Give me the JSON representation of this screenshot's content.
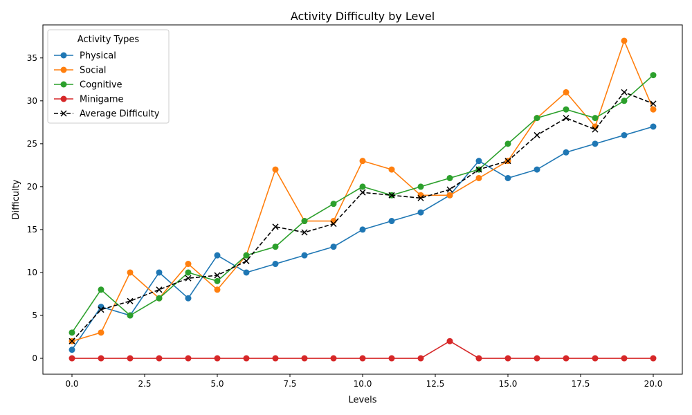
{
  "chart_data": {
    "type": "line",
    "title": "Activity Difficulty by Level",
    "xlabel": "Levels",
    "ylabel": "Difficulty",
    "xlim": [
      -1,
      21
    ],
    "ylim": [
      -1.85,
      38.85
    ],
    "x_ticks": [
      0,
      2.5,
      5,
      7.5,
      10,
      12.5,
      15,
      17.5,
      20
    ],
    "x_tick_labels": [
      "0.0",
      "2.5",
      "5.0",
      "7.5",
      "10.0",
      "12.5",
      "15.0",
      "17.5",
      "20.0"
    ],
    "y_ticks": [
      0,
      5,
      10,
      15,
      20,
      25,
      30,
      35
    ],
    "y_tick_labels": [
      "0",
      "5",
      "10",
      "15",
      "20",
      "25",
      "30",
      "35"
    ],
    "grid": false,
    "legend": {
      "title": "Activity Types",
      "placement": "top-left"
    },
    "x": [
      0,
      1,
      2,
      3,
      4,
      5,
      6,
      7,
      8,
      9,
      10,
      11,
      12,
      13,
      14,
      15,
      16,
      17,
      18,
      19,
      20
    ],
    "series": [
      {
        "name": "Physical",
        "color": "#1f77b4",
        "marker": "circle",
        "dash": "solid",
        "values": [
          1,
          6,
          5,
          10,
          7,
          12,
          10,
          11,
          12,
          13,
          15,
          16,
          17,
          19,
          23,
          21,
          22,
          24,
          25,
          26,
          27
        ]
      },
      {
        "name": "Social",
        "color": "#ff7f0e",
        "marker": "circle",
        "dash": "solid",
        "values": [
          2,
          3,
          10,
          7,
          11,
          8,
          12,
          22,
          16,
          16,
          23,
          22,
          19,
          19,
          21,
          23,
          28,
          31,
          27,
          37,
          29
        ]
      },
      {
        "name": "Cognitive",
        "color": "#2ca02c",
        "marker": "circle",
        "dash": "solid",
        "values": [
          3,
          8,
          5,
          7,
          10,
          9,
          12,
          13,
          16,
          18,
          20,
          19,
          20,
          21,
          22,
          25,
          28,
          29,
          28,
          30,
          33
        ]
      },
      {
        "name": "Minigame",
        "color": "#d62728",
        "marker": "circle",
        "dash": "solid",
        "values": [
          0,
          0,
          0,
          0,
          0,
          0,
          0,
          0,
          0,
          0,
          0,
          0,
          0,
          2,
          0,
          0,
          0,
          0,
          0,
          0,
          0
        ]
      },
      {
        "name": "Average Difficulty",
        "color": "#000000",
        "marker": "x",
        "dash": "dashed",
        "values": [
          2,
          5.67,
          6.67,
          8,
          9.33,
          9.67,
          11.33,
          15.33,
          14.67,
          15.67,
          19.33,
          19,
          18.67,
          19.67,
          22,
          23,
          26,
          28,
          26.67,
          31,
          29.67
        ]
      }
    ]
  }
}
